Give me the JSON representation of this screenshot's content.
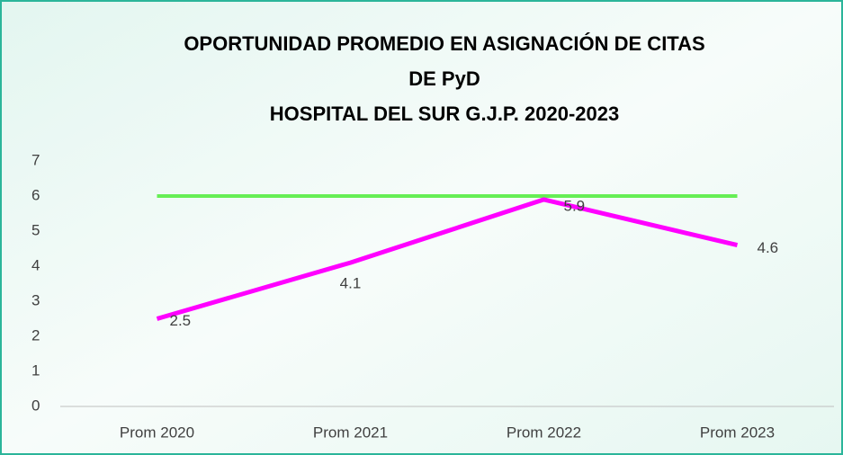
{
  "chart_data": {
    "type": "line",
    "title": [
      "OPORTUNIDAD PROMEDIO EN ASIGNACIÓN DE CITAS",
      "DE PyD",
      "HOSPITAL DEL SUR G.J.P. 2020-2023"
    ],
    "categories": [
      "Prom 2020",
      "Prom 2021",
      "Prom 2022",
      "Prom 2023"
    ],
    "series": [
      {
        "color": "#66ee55",
        "values": [
          6,
          6,
          6,
          6
        ]
      },
      {
        "color": "#ff00ff",
        "values": [
          2.5,
          4.1,
          5.9,
          4.6
        ],
        "data_labels": true
      }
    ],
    "ylim": [
      0,
      7
    ],
    "yticks": [
      0,
      1,
      2,
      3,
      4,
      5,
      6,
      7
    ],
    "grid": false
  }
}
